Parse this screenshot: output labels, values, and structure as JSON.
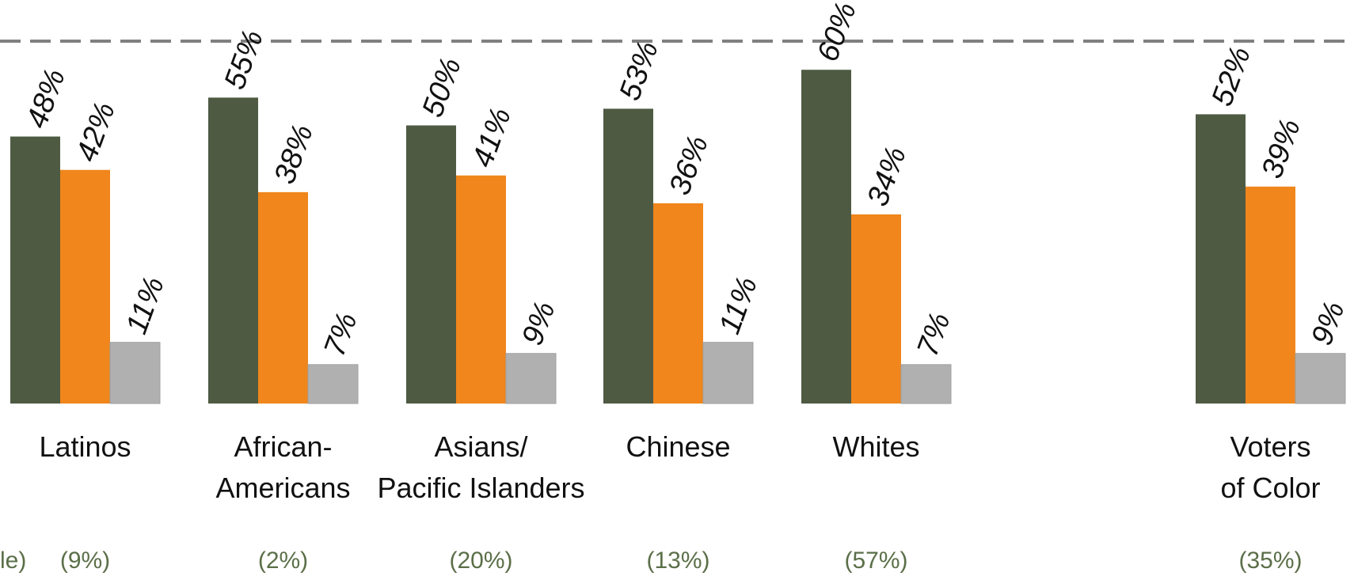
{
  "chart_data": {
    "type": "bar",
    "categories": [
      [
        "Latinos"
      ],
      [
        "African-",
        "Americans"
      ],
      [
        "Asians/",
        "Pacific Islanders"
      ],
      [
        "Chinese"
      ],
      [
        "Whites"
      ],
      [
        "Voters",
        "of Color"
      ]
    ],
    "series": [
      {
        "values": [
          48,
          55,
          50,
          53,
          60,
          52
        ],
        "color": "#4f5a43"
      },
      {
        "values": [
          42,
          38,
          41,
          36,
          34,
          39
        ],
        "color": "#f0861c"
      },
      {
        "values": [
          11,
          7,
          9,
          11,
          7,
          9
        ],
        "color": "#b0b0b0"
      }
    ],
    "value_labels": [
      [
        "48%",
        "42%",
        "11%"
      ],
      [
        "55%",
        "38%",
        "7%"
      ],
      [
        "50%",
        "41%",
        "9%"
      ],
      [
        "53%",
        "36%",
        "11%"
      ],
      [
        "60%",
        "34%",
        "7%"
      ],
      [
        "52%",
        "39%",
        "9%"
      ]
    ],
    "shares": [
      "(9%)",
      "(2%)",
      "(20%)",
      "(13%)",
      "(57%)",
      "(35%)"
    ],
    "left_partial_text": "le)",
    "ylim": [
      0,
      67
    ],
    "reference_line": {
      "style": "dashed",
      "color": "#808080"
    },
    "legend": "none",
    "grid": false
  }
}
